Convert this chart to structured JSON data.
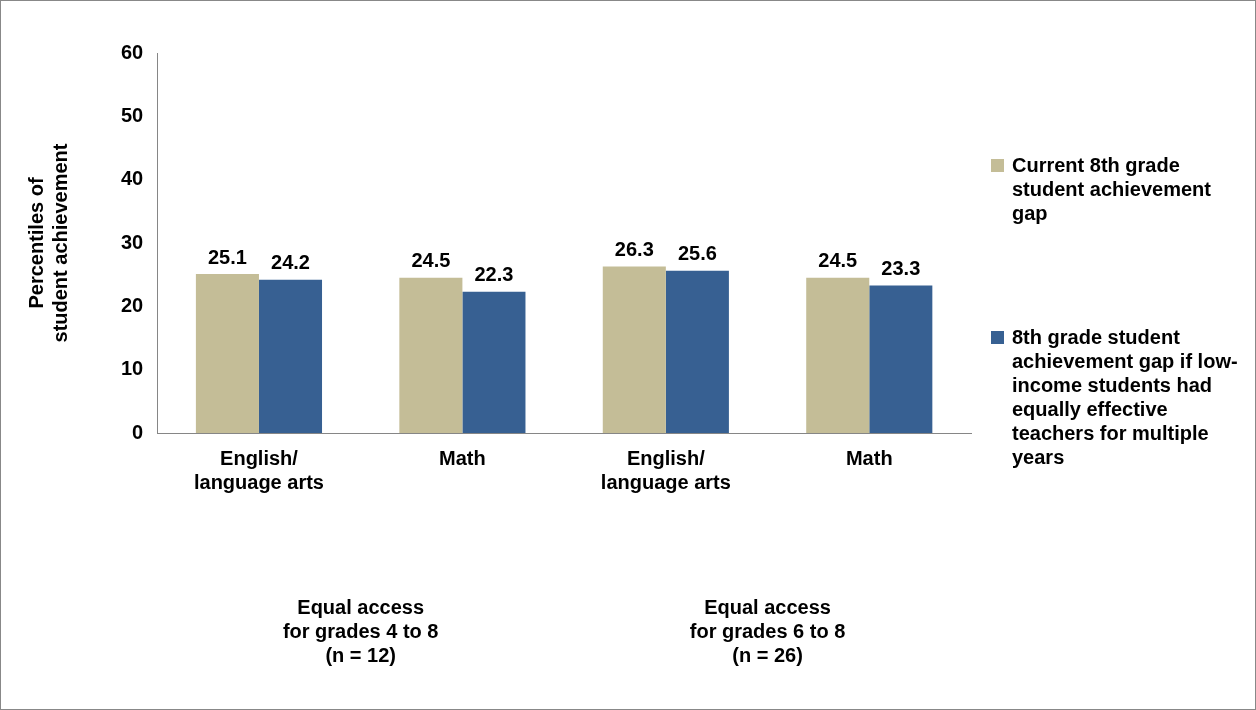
{
  "chart_data": {
    "type": "bar",
    "ylabel": "Percentiles of\nstudent achievement",
    "categories": [
      "English/\nlanguage arts",
      "Math",
      "English/\nlanguage arts",
      "Math"
    ],
    "series": [
      {
        "name": "Current 8th grade student achievement gap",
        "color": "#c4bd97",
        "values": [
          25.1,
          24.5,
          26.3,
          24.5
        ]
      },
      {
        "name": "8th grade student achievement gap if low-income students had equally effective teachers for multiple years",
        "color": "#376092",
        "values": [
          24.2,
          22.3,
          25.6,
          23.3
        ]
      }
    ],
    "ylim": [
      0,
      60
    ],
    "yticks": [
      0,
      10,
      20,
      30,
      40,
      50,
      60
    ],
    "grid": false,
    "legend": "right",
    "data_labels": true,
    "annotations": [
      "Equal access\nfor grades 4 to 8\n(n = 12)",
      "Equal access\nfor grades 6 to 8\n(n = 26)"
    ]
  }
}
